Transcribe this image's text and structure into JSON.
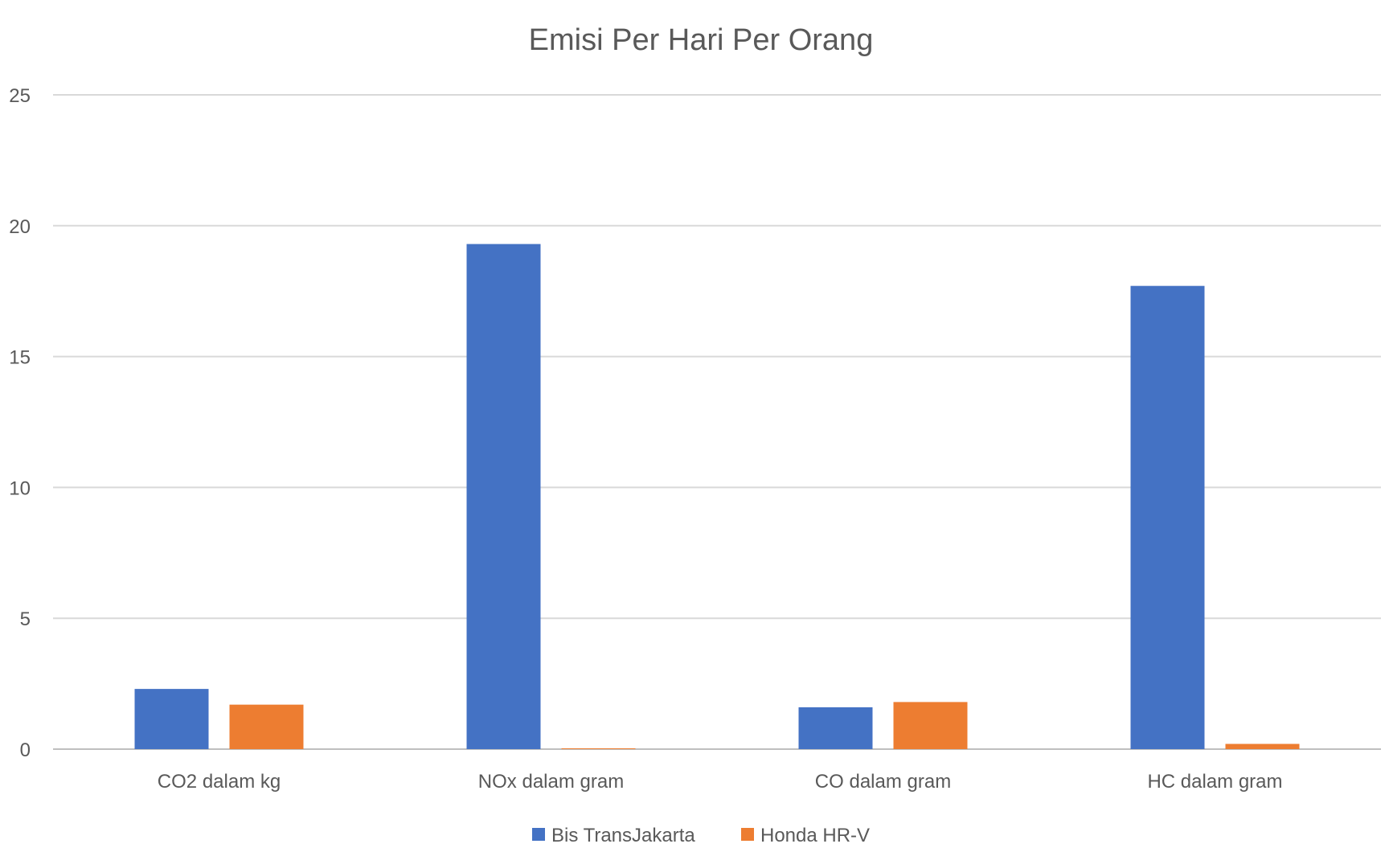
{
  "chart_data": {
    "type": "bar",
    "title": "Emisi Per Hari Per Orang",
    "xlabel": "",
    "ylabel": "",
    "ylim": [
      0,
      25
    ],
    "yticks": [
      0,
      5,
      10,
      15,
      20,
      25
    ],
    "grid": true,
    "legend_position": "bottom",
    "categories": [
      "CO2 dalam kg",
      "NOx dalam gram",
      "CO dalam gram",
      "HC dalam gram"
    ],
    "series": [
      {
        "name": "Bis TransJakarta",
        "color": "#4472C4",
        "values": [
          2.3,
          19.3,
          1.6,
          17.7
        ]
      },
      {
        "name": "Honda HR-V",
        "color": "#ED7D31",
        "values": [
          1.7,
          0.03,
          1.8,
          0.2
        ]
      }
    ]
  }
}
